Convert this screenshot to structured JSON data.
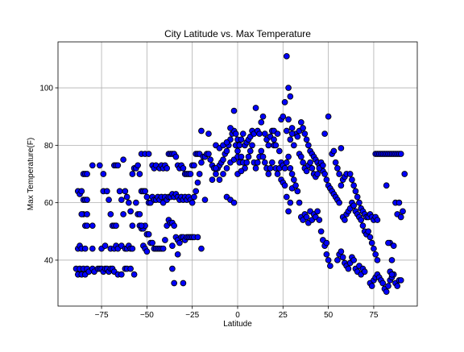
{
  "chart_data": {
    "type": "scatter",
    "title": "City Latitude vs. Max Temperature",
    "xlabel": "Latitude",
    "ylabel": "Max Temperature(F)",
    "xlim": [
      -99,
      99
    ],
    "ylim": [
      24,
      116
    ],
    "xticks": [
      -75,
      -50,
      -25,
      0,
      25,
      50,
      75
    ],
    "yticks": [
      40,
      60,
      80,
      100
    ],
    "grid": true,
    "colors": {
      "marker_fill": "#0000ff",
      "marker_edge": "#000000"
    },
    "points": [
      [
        -89,
        37
      ],
      [
        -88,
        35
      ],
      [
        -87,
        37
      ],
      [
        -86,
        35
      ],
      [
        -85,
        37
      ],
      [
        -84,
        35
      ],
      [
        -83,
        37
      ],
      [
        -82,
        36
      ],
      [
        -80,
        37
      ],
      [
        -79,
        36
      ],
      [
        -77,
        37
      ],
      [
        -76,
        37
      ],
      [
        -75,
        37
      ],
      [
        -74,
        36
      ],
      [
        -73,
        37
      ],
      [
        -72,
        37
      ],
      [
        -71,
        36
      ],
      [
        -70,
        37
      ],
      [
        -69,
        37
      ],
      [
        -68,
        36
      ],
      [
        -66,
        35
      ],
      [
        -64,
        35
      ],
      [
        -62,
        37
      ],
      [
        -61,
        37
      ],
      [
        -59,
        37
      ],
      [
        -57,
        35
      ],
      [
        -88,
        44
      ],
      [
        -87,
        45
      ],
      [
        -86,
        44
      ],
      [
        -84,
        44
      ],
      [
        -80,
        44
      ],
      [
        -75,
        44
      ],
      [
        -73,
        45
      ],
      [
        -70,
        44
      ],
      [
        -68,
        44
      ],
      [
        -67,
        45
      ],
      [
        -66,
        44
      ],
      [
        -64,
        45
      ],
      [
        -62,
        44
      ],
      [
        -61,
        44
      ],
      [
        -60,
        45
      ],
      [
        -59,
        44
      ],
      [
        -58,
        44
      ],
      [
        -88,
        64
      ],
      [
        -87,
        63
      ],
      [
        -86,
        64
      ],
      [
        -85,
        70
      ],
      [
        -84,
        70
      ],
      [
        -83,
        70
      ],
      [
        -85,
        61
      ],
      [
        -84,
        61
      ],
      [
        -83,
        61
      ],
      [
        -84,
        52
      ],
      [
        -83,
        52
      ],
      [
        -80,
        52
      ],
      [
        -85,
        56
      ],
      [
        -83,
        56
      ],
      [
        -86,
        56
      ],
      [
        -80,
        73
      ],
      [
        -76,
        73
      ],
      [
        -74,
        70
      ],
      [
        -74,
        64
      ],
      [
        -72,
        64
      ],
      [
        -71,
        61
      ],
      [
        -70,
        56
      ],
      [
        -69,
        52
      ],
      [
        -68,
        52
      ],
      [
        -67,
        52
      ],
      [
        -68,
        73
      ],
      [
        -67,
        73
      ],
      [
        -66,
        73
      ],
      [
        -65,
        64
      ],
      [
        -64,
        61
      ],
      [
        -63,
        56
      ],
      [
        -63,
        75
      ],
      [
        -62,
        64
      ],
      [
        -61,
        62
      ],
      [
        -60,
        60
      ],
      [
        -59,
        57
      ],
      [
        -58,
        52
      ],
      [
        -58,
        70
      ],
      [
        -57,
        72
      ],
      [
        -56,
        72
      ],
      [
        -55,
        73
      ],
      [
        -54,
        70
      ],
      [
        -53,
        64
      ],
      [
        -52,
        64
      ],
      [
        -51,
        64
      ],
      [
        -50,
        62
      ],
      [
        -49,
        60
      ],
      [
        -48,
        60
      ],
      [
        -47,
        62
      ],
      [
        -46,
        61
      ],
      [
        -45,
        61
      ],
      [
        -44,
        62
      ],
      [
        -43,
        61
      ],
      [
        -42,
        62
      ],
      [
        -41,
        60
      ],
      [
        -40,
        62
      ],
      [
        -39,
        61
      ],
      [
        -38,
        62
      ],
      [
        -37,
        62
      ],
      [
        -36,
        63
      ],
      [
        -35,
        62
      ],
      [
        -34,
        63
      ],
      [
        -33,
        62
      ],
      [
        -32,
        61
      ],
      [
        -31,
        62
      ],
      [
        -30,
        61
      ],
      [
        -29,
        62
      ],
      [
        -28,
        61
      ],
      [
        -27,
        62
      ],
      [
        -26,
        61
      ],
      [
        -53,
        77
      ],
      [
        -51,
        77
      ],
      [
        -49,
        77
      ],
      [
        -47,
        73
      ],
      [
        -46,
        72
      ],
      [
        -45,
        73
      ],
      [
        -43,
        72
      ],
      [
        -42,
        73
      ],
      [
        -41,
        72
      ],
      [
        -40,
        73
      ],
      [
        -39,
        72
      ],
      [
        -38,
        77
      ],
      [
        -37,
        77
      ],
      [
        -36,
        77
      ],
      [
        -35,
        77
      ],
      [
        -34,
        76
      ],
      [
        -33,
        73
      ],
      [
        -32,
        72
      ],
      [
        -31,
        73
      ],
      [
        -30,
        72
      ],
      [
        -29,
        70
      ],
      [
        -28,
        70
      ],
      [
        -27,
        70
      ],
      [
        -26,
        70
      ],
      [
        -25,
        73
      ],
      [
        -24,
        73
      ],
      [
        -23,
        77
      ],
      [
        -22,
        77
      ],
      [
        -21,
        77
      ],
      [
        -54,
        52
      ],
      [
        -53,
        51
      ],
      [
        -52,
        51
      ],
      [
        -51,
        52
      ],
      [
        -50,
        49
      ],
      [
        -49,
        49
      ],
      [
        -48,
        46
      ],
      [
        -47,
        46
      ],
      [
        -46,
        44
      ],
      [
        -45,
        44
      ],
      [
        -44,
        44
      ],
      [
        -43,
        44
      ],
      [
        -42,
        44
      ],
      [
        -41,
        44
      ],
      [
        -40,
        47
      ],
      [
        -39,
        52
      ],
      [
        -38,
        54
      ],
      [
        -37,
        53
      ],
      [
        -36,
        53
      ],
      [
        -35,
        52
      ],
      [
        -34,
        48
      ],
      [
        -33,
        47
      ],
      [
        -32,
        46
      ],
      [
        -31,
        48
      ],
      [
        -30,
        48
      ],
      [
        -29,
        47
      ],
      [
        -28,
        48
      ],
      [
        -27,
        48
      ],
      [
        -26,
        48
      ],
      [
        -25,
        48
      ],
      [
        -24,
        48
      ],
      [
        -22,
        48
      ],
      [
        -56,
        60
      ],
      [
        -55,
        56
      ],
      [
        -54,
        56
      ],
      [
        -53,
        52
      ],
      [
        -52,
        45
      ],
      [
        -51,
        44
      ],
      [
        -50,
        43
      ],
      [
        -36,
        37
      ],
      [
        -35,
        32
      ],
      [
        -30,
        32
      ],
      [
        -36,
        45
      ],
      [
        -33,
        42
      ],
      [
        -20,
        44
      ],
      [
        -25,
        60
      ],
      [
        -24,
        62
      ],
      [
        -23,
        64
      ],
      [
        -22,
        67
      ],
      [
        -21,
        70
      ],
      [
        -20,
        74
      ],
      [
        -19,
        76
      ],
      [
        -18,
        76
      ],
      [
        -17,
        77
      ],
      [
        -16,
        77
      ],
      [
        -15,
        75
      ],
      [
        -14,
        73
      ],
      [
        -13,
        72
      ],
      [
        -12,
        70
      ],
      [
        -11,
        72
      ],
      [
        -10,
        73
      ],
      [
        -9,
        74
      ],
      [
        -8,
        75
      ],
      [
        -7,
        77
      ],
      [
        -6,
        78
      ],
      [
        -5,
        80
      ],
      [
        -4,
        82
      ],
      [
        -3,
        84
      ],
      [
        -2,
        85
      ],
      [
        -1,
        84
      ],
      [
        0,
        82
      ],
      [
        -20,
        85
      ],
      [
        -16,
        84
      ],
      [
        -12,
        80
      ],
      [
        -10,
        79
      ],
      [
        -8,
        80
      ],
      [
        -6,
        81
      ],
      [
        -4,
        86
      ],
      [
        -2,
        92
      ],
      [
        -1,
        80
      ],
      [
        0,
        78
      ],
      [
        1,
        80
      ],
      [
        2,
        82
      ],
      [
        3,
        84
      ],
      [
        4,
        80
      ],
      [
        5,
        81
      ],
      [
        6,
        82
      ],
      [
        7,
        83
      ],
      [
        8,
        85
      ],
      [
        9,
        84
      ],
      [
        10,
        93
      ],
      [
        11,
        85
      ],
      [
        12,
        84
      ],
      [
        13,
        88
      ],
      [
        14,
        90
      ],
      [
        15,
        84
      ],
      [
        16,
        82
      ],
      [
        17,
        80
      ],
      [
        18,
        83
      ],
      [
        19,
        85
      ],
      [
        20,
        82
      ],
      [
        -10,
        68
      ],
      [
        -8,
        70
      ],
      [
        -6,
        72
      ],
      [
        -4,
        74
      ],
      [
        -2,
        75
      ],
      [
        0,
        76
      ],
      [
        1,
        74
      ],
      [
        2,
        76
      ],
      [
        3,
        74
      ],
      [
        4,
        72
      ],
      [
        5,
        74
      ],
      [
        6,
        76
      ],
      [
        7,
        78
      ],
      [
        8,
        80
      ],
      [
        9,
        74
      ],
      [
        10,
        72
      ],
      [
        11,
        74
      ],
      [
        12,
        76
      ],
      [
        13,
        78
      ],
      [
        14,
        76
      ],
      [
        15,
        74
      ],
      [
        16,
        72
      ],
      [
        17,
        70
      ],
      [
        18,
        72
      ],
      [
        19,
        74
      ],
      [
        20,
        80
      ],
      [
        21,
        72
      ],
      [
        22,
        70
      ],
      [
        23,
        72
      ],
      [
        24,
        74
      ],
      [
        25,
        73
      ],
      [
        26,
        72
      ],
      [
        27,
        74
      ],
      [
        28,
        76
      ],
      [
        29,
        72
      ],
      [
        30,
        70
      ],
      [
        -6,
        62
      ],
      [
        -4,
        61
      ],
      [
        -2,
        60
      ],
      [
        0,
        70
      ],
      [
        2,
        71
      ],
      [
        -14,
        68
      ],
      [
        -12,
        72
      ],
      [
        -18,
        61
      ],
      [
        20,
        85
      ],
      [
        21,
        80
      ],
      [
        22,
        84
      ],
      [
        23,
        78
      ],
      [
        24,
        89
      ],
      [
        25,
        90
      ],
      [
        26,
        95
      ],
      [
        27,
        85
      ],
      [
        28,
        89
      ],
      [
        29,
        82
      ],
      [
        30,
        86
      ],
      [
        31,
        80
      ],
      [
        32,
        84
      ],
      [
        33,
        83
      ],
      [
        34,
        85
      ],
      [
        35,
        88
      ],
      [
        36,
        86
      ],
      [
        37,
        84
      ],
      [
        38,
        82
      ],
      [
        39,
        80
      ],
      [
        40,
        78
      ],
      [
        41,
        77
      ],
      [
        42,
        76
      ],
      [
        43,
        75
      ],
      [
        44,
        74
      ],
      [
        45,
        73
      ],
      [
        46,
        72
      ],
      [
        47,
        71
      ],
      [
        48,
        84
      ],
      [
        27,
        111
      ],
      [
        28,
        100
      ],
      [
        29,
        97
      ],
      [
        30,
        84
      ],
      [
        24,
        68
      ],
      [
        25,
        67
      ],
      [
        26,
        66
      ],
      [
        27,
        62
      ],
      [
        28,
        57
      ],
      [
        29,
        60
      ],
      [
        30,
        65
      ],
      [
        31,
        68
      ],
      [
        32,
        66
      ],
      [
        33,
        64
      ],
      [
        34,
        60
      ],
      [
        35,
        55
      ],
      [
        36,
        54
      ],
      [
        37,
        56
      ],
      [
        38,
        55
      ],
      [
        39,
        53
      ],
      [
        40,
        57
      ],
      [
        41,
        54
      ],
      [
        42,
        56
      ],
      [
        43,
        55
      ],
      [
        44,
        57
      ],
      [
        45,
        54
      ],
      [
        46,
        50
      ],
      [
        47,
        47
      ],
      [
        48,
        45
      ],
      [
        49,
        42
      ],
      [
        50,
        40
      ],
      [
        51,
        38
      ],
      [
        34,
        77
      ],
      [
        35,
        76
      ],
      [
        36,
        74
      ],
      [
        37,
        72
      ],
      [
        38,
        71
      ],
      [
        39,
        73
      ],
      [
        40,
        74
      ],
      [
        41,
        72
      ],
      [
        42,
        70
      ],
      [
        43,
        69
      ],
      [
        44,
        70
      ],
      [
        45,
        72
      ],
      [
        46,
        74
      ],
      [
        47,
        73
      ],
      [
        48,
        70
      ],
      [
        49,
        68
      ],
      [
        50,
        66
      ],
      [
        51,
        65
      ],
      [
        52,
        64
      ],
      [
        53,
        63
      ],
      [
        54,
        62
      ],
      [
        55,
        61
      ],
      [
        56,
        60
      ],
      [
        57,
        66
      ],
      [
        58,
        68
      ],
      [
        59,
        69
      ],
      [
        60,
        70
      ],
      [
        49,
        46
      ],
      [
        50,
        90
      ],
      [
        52,
        77
      ],
      [
        53,
        78
      ],
      [
        54,
        74
      ],
      [
        55,
        72
      ],
      [
        56,
        70
      ],
      [
        57,
        79
      ],
      [
        58,
        55
      ],
      [
        59,
        54
      ],
      [
        60,
        56
      ],
      [
        61,
        57
      ],
      [
        62,
        58
      ],
      [
        63,
        60
      ],
      [
        64,
        59
      ],
      [
        65,
        57
      ],
      [
        66,
        56
      ],
      [
        67,
        55
      ],
      [
        68,
        54
      ],
      [
        69,
        52
      ],
      [
        70,
        50
      ],
      [
        71,
        49
      ],
      [
        72,
        50
      ],
      [
        73,
        48
      ],
      [
        74,
        46
      ],
      [
        75,
        44
      ],
      [
        76,
        42
      ],
      [
        77,
        40
      ],
      [
        55,
        40
      ],
      [
        56,
        42
      ],
      [
        57,
        43
      ],
      [
        58,
        41
      ],
      [
        59,
        39
      ],
      [
        60,
        38
      ],
      [
        61,
        37
      ],
      [
        62,
        39
      ],
      [
        63,
        41
      ],
      [
        64,
        40
      ],
      [
        65,
        37
      ],
      [
        66,
        36
      ],
      [
        67,
        38
      ],
      [
        68,
        35
      ],
      [
        69,
        37
      ],
      [
        70,
        36
      ],
      [
        62,
        70
      ],
      [
        63,
        68
      ],
      [
        64,
        66
      ],
      [
        65,
        64
      ],
      [
        66,
        62
      ],
      [
        67,
        60
      ],
      [
        68,
        58
      ],
      [
        69,
        57
      ],
      [
        70,
        56
      ],
      [
        71,
        55
      ],
      [
        72,
        55
      ],
      [
        73,
        56
      ],
      [
        74,
        55
      ],
      [
        75,
        54
      ],
      [
        76,
        55
      ],
      [
        77,
        54
      ],
      [
        73,
        32
      ],
      [
        74,
        31
      ],
      [
        75,
        33
      ],
      [
        76,
        34
      ],
      [
        77,
        35
      ],
      [
        78,
        34
      ],
      [
        79,
        33
      ],
      [
        80,
        32
      ],
      [
        81,
        30
      ],
      [
        82,
        29
      ],
      [
        83,
        31
      ],
      [
        84,
        33
      ],
      [
        85,
        34
      ],
      [
        86,
        35
      ],
      [
        87,
        32
      ],
      [
        88,
        31
      ],
      [
        89,
        33
      ],
      [
        90,
        33
      ],
      [
        76,
        77
      ],
      [
        77,
        77
      ],
      [
        78,
        77
      ],
      [
        79,
        77
      ],
      [
        80,
        77
      ],
      [
        81,
        77
      ],
      [
        82,
        77
      ],
      [
        83,
        77
      ],
      [
        84,
        77
      ],
      [
        85,
        77
      ],
      [
        86,
        77
      ],
      [
        87,
        77
      ],
      [
        88,
        77
      ],
      [
        89,
        77
      ],
      [
        90,
        77
      ],
      [
        82,
        66
      ],
      [
        84,
        46
      ],
      [
        85,
        40
      ],
      [
        86,
        45
      ],
      [
        87,
        60
      ],
      [
        88,
        56
      ],
      [
        89,
        60
      ],
      [
        90,
        55
      ],
      [
        91,
        57
      ],
      [
        92,
        70
      ],
      [
        83,
        46
      ],
      [
        84,
        36
      ],
      [
        85,
        35
      ]
    ]
  }
}
